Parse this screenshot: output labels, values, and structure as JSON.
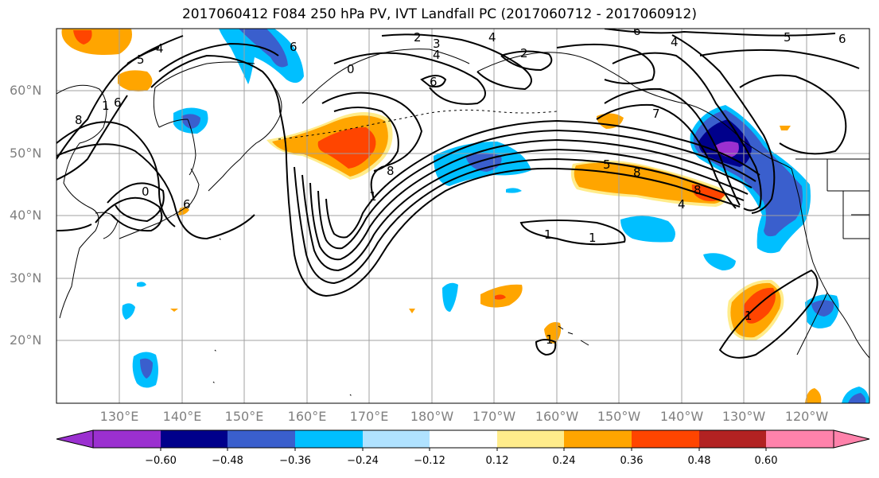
{
  "title": "2017060412 F084 250 hPa PV, IVT Landfall PC (2017060712 - 2017060912)",
  "lat_labels": [
    "60°N",
    "50°N",
    "40°N",
    "30°N",
    "20°N"
  ],
  "lon_labels": [
    "130°E",
    "140°E",
    "150°E",
    "160°E",
    "170°E",
    "180°W",
    "170°W",
    "160°W",
    "150°W",
    "140°W",
    "130°W",
    "120°W"
  ],
  "colorbar": {
    "ticks": [
      "−0.60",
      "−0.48",
      "−0.36",
      "−0.24",
      "−0.12",
      "0.12",
      "0.24",
      "0.36",
      "0.48",
      "0.60"
    ],
    "colors": [
      "#9b30d0",
      "#00008b",
      "#3a5fcd",
      "#00bfff",
      "#b0e2ff",
      "#ffffff",
      "#ffec8b",
      "#ffa500",
      "#ff4500",
      "#b22222",
      "#ff82ab"
    ]
  },
  "contour_labels": [
    "5",
    "4",
    "6",
    "1",
    "8",
    "6",
    "0",
    "2",
    "3",
    "4",
    "2",
    "4",
    "6",
    "0",
    "8",
    "1",
    "6",
    "5",
    "6",
    "7",
    "4",
    "5",
    "8",
    "8",
    "4",
    "6",
    "1",
    "1",
    "1",
    "1"
  ],
  "colors": {
    "purple": "#9b30d0",
    "navy": "#00008b",
    "blue": "#3a5fcd",
    "sky": "#00bfff",
    "lightblue": "#b0e2ff",
    "yellow": "#ffec8b",
    "orange": "#ffa500",
    "redorange": "#ff4500",
    "firebrick": "#b22222",
    "pink": "#ff82ab"
  }
}
